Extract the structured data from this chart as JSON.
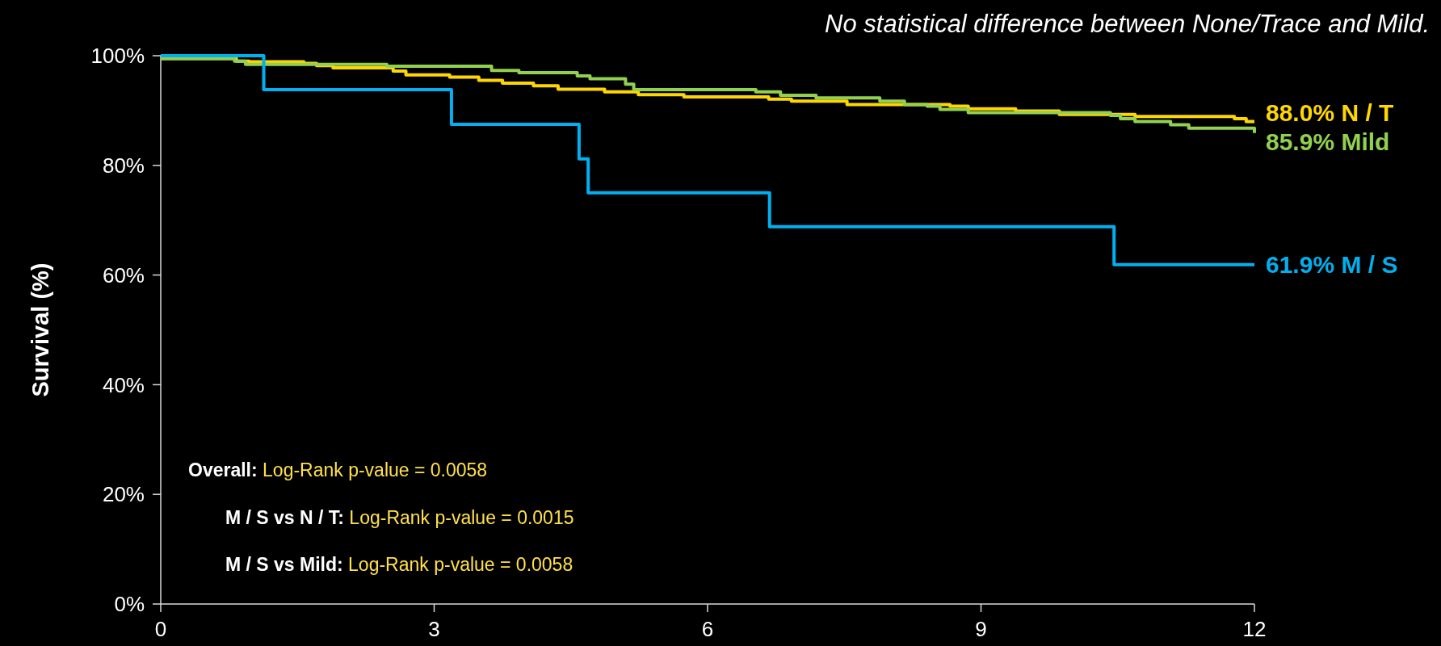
{
  "chart_data": {
    "type": "step",
    "title": "No statistical difference between None/Trace and Mild.",
    "ylabel": "Survival (%)",
    "xlim": [
      0,
      12
    ],
    "xticks": [
      0,
      3,
      6,
      9,
      12
    ],
    "ylim": [
      0,
      100
    ],
    "yticks": [
      {
        "value": 0,
        "label": "0%"
      },
      {
        "value": 20,
        "label": "20%"
      },
      {
        "value": 40,
        "label": "40%"
      },
      {
        "value": 60,
        "label": "60%"
      },
      {
        "value": 80,
        "label": "80%"
      },
      {
        "value": 100,
        "label": "100%"
      }
    ],
    "grid": false,
    "series": [
      {
        "color": "#ffd700",
        "x": [
          0,
          0.83,
          0.97,
          1.57,
          1.71,
          1.89,
          2.55,
          2.69,
          3.17,
          3.49,
          3.75,
          4.09,
          4.36,
          4.87,
          5.24,
          5.74,
          6.67,
          6.92,
          7.53,
          8.66,
          8.86,
          9.38,
          9.86,
          10.69,
          11.78,
          11.91,
          12
        ],
        "values": [
          99.5,
          99.0,
          98.9,
          98.6,
          98.2,
          97.8,
          97.2,
          96.5,
          96.1,
          95.5,
          95.0,
          94.5,
          93.9,
          93.4,
          92.9,
          92.5,
          92.1,
          91.7,
          91.1,
          90.8,
          90.3,
          89.9,
          89.3,
          88.9,
          88.5,
          88.0,
          88.0
        ]
      },
      {
        "color": "#92d050",
        "x": [
          0,
          0.81,
          0.93,
          2.48,
          3.63,
          3.93,
          4.57,
          4.71,
          5.1,
          5.19,
          6.53,
          6.8,
          7.19,
          7.89,
          8.16,
          8.41,
          8.55,
          8.86,
          10.42,
          10.53,
          10.69,
          11.08,
          11.28,
          12
        ],
        "values": [
          99.5,
          99.0,
          98.4,
          98.1,
          97.3,
          96.9,
          96.3,
          95.8,
          94.8,
          93.8,
          93.4,
          92.8,
          92.3,
          91.7,
          91.1,
          90.8,
          90.2,
          89.6,
          89.1,
          88.5,
          88.0,
          87.4,
          86.8,
          85.9
        ]
      },
      {
        "color": "#00b0f0",
        "x": [
          0,
          1.13,
          3.19,
          4.59,
          4.69,
          6.68,
          10.46,
          12
        ],
        "values": [
          100,
          93.8,
          87.5,
          81.2,
          75.0,
          68.8,
          61.9,
          61.9
        ]
      }
    ],
    "annotations": [
      "88.0% N / T",
      "85.9% Mild",
      "61.9% M / S",
      "Overall: Log-Rank p-value = 0.0058",
      "M / S vs N / T: Log-Rank p-value = 0.0015",
      "M / S vs Mild: Log-Rank p-value = 0.0058"
    ]
  }
}
